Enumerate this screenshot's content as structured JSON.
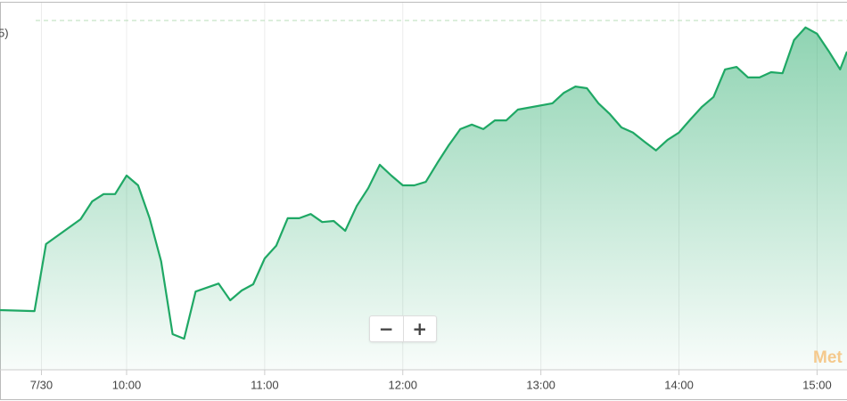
{
  "chart_data": {
    "type": "line",
    "label_fragment": "5)",
    "x": [
      545,
      560,
      565,
      580,
      585,
      590,
      595,
      600,
      605,
      610,
      615,
      620,
      625,
      630,
      640,
      645,
      650,
      655,
      660,
      665,
      670,
      675,
      680,
      685,
      690,
      695,
      700,
      705,
      710,
      715,
      720,
      725,
      730,
      735,
      740,
      745,
      750,
      755,
      760,
      765,
      770,
      785,
      790,
      795,
      800,
      805,
      810,
      815,
      820,
      825,
      830,
      835,
      840,
      845,
      850,
      855,
      860,
      865,
      870,
      875,
      880,
      885,
      890,
      895,
      900,
      905,
      910,
      913
    ],
    "values": [
      17.1,
      16.8,
      36.0,
      43.1,
      48.2,
      50.3,
      50.3,
      55.6,
      52.8,
      43.4,
      31.1,
      10.2,
      8.9,
      22.4,
      24.7,
      19.9,
      22.7,
      24.5,
      31.9,
      35.5,
      43.4,
      43.4,
      44.6,
      42.3,
      42.6,
      39.8,
      46.9,
      52.0,
      58.7,
      55.6,
      52.8,
      52.8,
      53.8,
      59.2,
      64.3,
      68.9,
      70.2,
      68.9,
      71.4,
      71.4,
      74.5,
      76.3,
      79.3,
      81.1,
      80.6,
      76.3,
      73.2,
      69.4,
      67.9,
      65.3,
      62.8,
      65.8,
      67.9,
      71.7,
      75.3,
      78.1,
      86.0,
      86.7,
      83.7,
      83.7,
      85.2,
      84.9,
      94.4,
      98.0,
      96.2,
      91.3,
      86.0,
      91.1
    ],
    "color": "#1fa865",
    "area": true,
    "reference_line": 100,
    "xlim": [
      545,
      913
    ],
    "ylim": [
      0,
      100
    ],
    "xticks": [
      {
        "value": 563,
        "label": "7/30"
      },
      {
        "value": 600,
        "label": "10:00"
      },
      {
        "value": 660,
        "label": "11:00"
      },
      {
        "value": 720,
        "label": "12:00"
      },
      {
        "value": 780,
        "label": "13:00"
      },
      {
        "value": 840,
        "label": "14:00"
      },
      {
        "value": 900,
        "label": "15:00"
      }
    ],
    "grid": true
  },
  "watermark": "Met",
  "controls": {
    "zoom_out": "−",
    "zoom_in": "+"
  }
}
